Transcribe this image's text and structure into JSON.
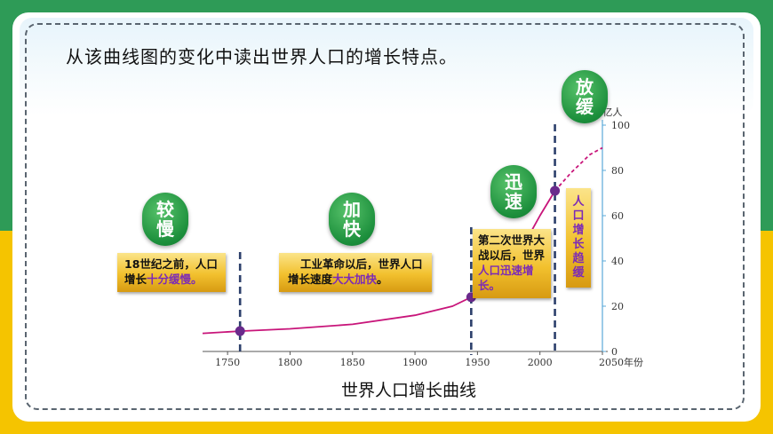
{
  "question": "从该曲线图的变化中读出世界人口的增长特点。",
  "chart_data": {
    "type": "line",
    "title": "世界人口增长曲线",
    "ylabel": "数/亿人",
    "xlabel": "年份",
    "xlim": [
      1730,
      2050
    ],
    "ylim": [
      0,
      100
    ],
    "x_ticks": [
      1750,
      1800,
      1850,
      1900,
      1950,
      2000,
      2050
    ],
    "y_ticks": [
      0,
      20,
      40,
      60,
      80,
      100
    ],
    "series": [
      {
        "style": "solid",
        "points": [
          [
            1730,
            8
          ],
          [
            1760,
            9
          ],
          [
            1800,
            10
          ],
          [
            1850,
            12
          ],
          [
            1900,
            16
          ],
          [
            1930,
            20
          ],
          [
            1945,
            24
          ],
          [
            1960,
            30
          ],
          [
            1975,
            38
          ],
          [
            1990,
            50
          ],
          [
            2000,
            60
          ],
          [
            2012,
            71
          ]
        ]
      },
      {
        "style": "dashed",
        "points": [
          [
            2012,
            71
          ],
          [
            2025,
            79
          ],
          [
            2040,
            87
          ],
          [
            2050,
            90
          ]
        ]
      }
    ],
    "markers": [
      {
        "x": 1760,
        "y": 9
      },
      {
        "x": 1945,
        "y": 24
      },
      {
        "x": 2012,
        "y": 71
      }
    ],
    "dividers": [
      1760,
      1945,
      2012
    ],
    "badges": [
      {
        "text": "较慢",
        "lines": [
          "较",
          "慢"
        ]
      },
      {
        "text": "加快",
        "lines": [
          "加",
          "快"
        ]
      },
      {
        "text": "迅速",
        "lines": [
          "迅",
          "速"
        ]
      },
      {
        "text": "放缓",
        "lines": [
          "放",
          "缓"
        ]
      }
    ],
    "annotations": {
      "stage1": {
        "normal": "18世纪之前，人口增长",
        "highlight": "十分缓慢。"
      },
      "stage2": {
        "normal": "工业革命以后，世界人口增长速度",
        "highlight": "大大加快",
        "tail": "。"
      },
      "stage3": {
        "normal": "第二次世界大战以后，世界",
        "highlight": "人口迅速增长。"
      },
      "stage4": {
        "text": "人口增长趋缓"
      }
    }
  },
  "colors": {
    "curve": "#c8157a",
    "marker": "#6a2a8c",
    "axis": "#5aa9d8",
    "divider": "#2c3f6b",
    "highlight": "#7b2ab7"
  }
}
